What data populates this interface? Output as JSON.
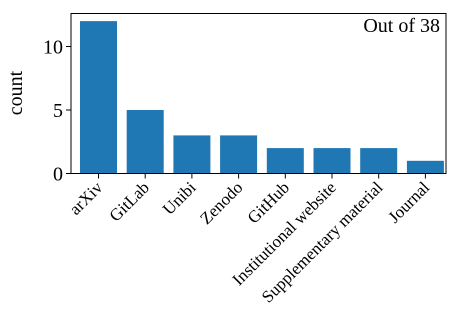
{
  "chart_data": {
    "type": "bar",
    "categories": [
      "arXiv",
      "GitLab",
      "Unibi",
      "Zenodo",
      "GitHub",
      "Institutional website",
      "Supplementary material",
      "Journal"
    ],
    "values": [
      12,
      5,
      3,
      3,
      2,
      2,
      2,
      1
    ],
    "ylabel": "count",
    "xlabel": "",
    "ylim": [
      0,
      12.6
    ],
    "yticks": [
      0,
      5,
      10
    ],
    "annotation": "Out of 38",
    "bar_color": "#1f77b4",
    "grid": false
  }
}
